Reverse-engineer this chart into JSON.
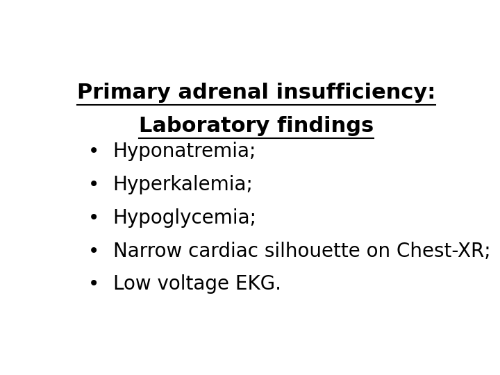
{
  "title_line1": "Primary adrenal insufficiency:",
  "title_line2": "Laboratory findings",
  "bullet_items": [
    "Hyponatremia;",
    "Hyperkalemia;",
    "Hypoglycemia;",
    "Narrow cardiac silhouette on Chest-XR;",
    "Low voltage EKG."
  ],
  "background_color": "#ffffff",
  "text_color": "#000000",
  "title_fontsize": 22,
  "bullet_fontsize": 20,
  "bullet_symbol": "•"
}
